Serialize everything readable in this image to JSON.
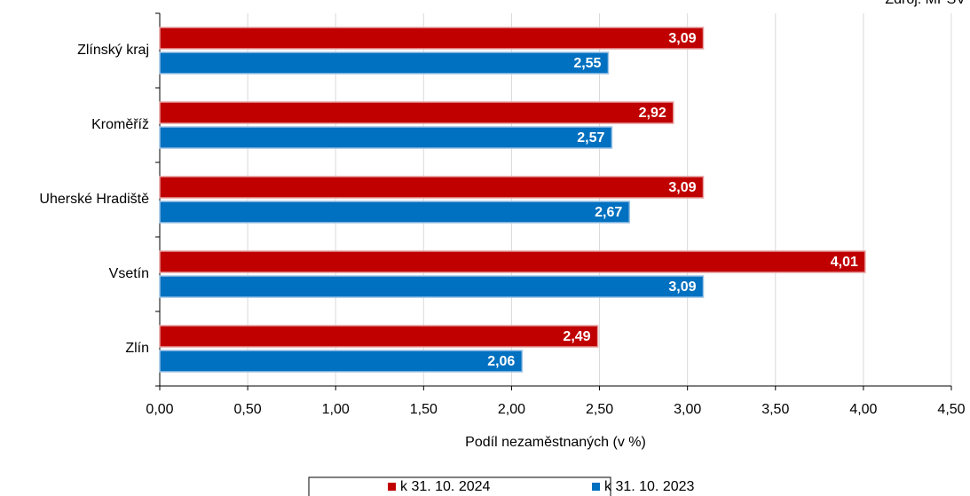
{
  "chart_data": {
    "type": "hbar",
    "source": "Zdroj: MPSV",
    "xlabel": "Podíl nezaměstnaných (v %)",
    "categories": [
      "Zlínský kraj",
      "Kroměříž",
      "Uherské Hradiště",
      "Vsetín",
      "Zlín"
    ],
    "series": [
      {
        "name": "k 31. 10. 2024",
        "color": "#c00000",
        "values": [
          3.09,
          2.92,
          3.09,
          4.01,
          2.49
        ],
        "value_labels": [
          "3,09",
          "2,92",
          "3,09",
          "4,01",
          "2,49"
        ]
      },
      {
        "name": "k 31. 10. 2023",
        "color": "#0070c0",
        "values": [
          2.55,
          2.57,
          2.67,
          3.09,
          2.06
        ],
        "value_labels": [
          "2,55",
          "2,57",
          "2,67",
          "3,09",
          "2,06"
        ]
      }
    ],
    "xlim": [
      0,
      4.5
    ],
    "xticks": [
      {
        "value": 0,
        "label": "0,00"
      },
      {
        "value": 0.5,
        "label": "0,50"
      },
      {
        "value": 1,
        "label": "1,00"
      },
      {
        "value": 1.5,
        "label": "1,50"
      },
      {
        "value": 2,
        "label": "2,00"
      },
      {
        "value": 2.5,
        "label": "2,50"
      },
      {
        "value": 3,
        "label": "3,00"
      },
      {
        "value": 3.5,
        "label": "3,50"
      },
      {
        "value": 4,
        "label": "4,00"
      },
      {
        "value": 4.5,
        "label": "4,50"
      }
    ],
    "grid": true,
    "legend": "bottom"
  }
}
